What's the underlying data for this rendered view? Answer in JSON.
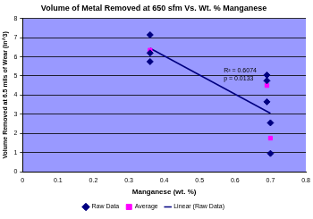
{
  "chart_data": {
    "type": "scatter",
    "title": "Volume of Metal Removed at 650 sfm Vs. Wt. % Manganese",
    "x_label": "Manganese (wt. %)",
    "y_label": "Volume Removed at 6.5 mils of Wear (in^3)",
    "xlim": [
      0,
      0.8
    ],
    "xticks": [
      0,
      0.1,
      0.2,
      0.3,
      0.4,
      0.5,
      0.6,
      0.7,
      0.8
    ],
    "ylim": [
      0,
      8
    ],
    "yticks": [
      0,
      1,
      2,
      3,
      4,
      5,
      6,
      7,
      8
    ],
    "grid": true,
    "legend": "bottom",
    "annotations": [
      "R² = 0.6074",
      "p = 0.0133"
    ],
    "series": [
      {
        "name": "Raw Data",
        "type": "scatter",
        "color": "#000080",
        "marker": "diamond",
        "x": [
          0.36,
          0.36,
          0.36,
          0.69,
          0.69,
          0.69,
          0.7,
          0.7
        ],
        "values": [
          7.15,
          6.2,
          5.75,
          5.05,
          4.75,
          3.65,
          2.55,
          0.95
        ]
      },
      {
        "name": "Average",
        "type": "scatter",
        "color": "#ff00ff",
        "marker": "square",
        "x": [
          0.36,
          0.69,
          0.7
        ],
        "values": [
          6.35,
          4.5,
          1.75
        ]
      },
      {
        "name": "Linear (Raw Data)",
        "type": "line",
        "color": "#000080",
        "marker": "none",
        "line_style": "solid",
        "x": [
          0.36,
          0.7
        ],
        "values": [
          6.45,
          3.05
        ]
      }
    ]
  }
}
